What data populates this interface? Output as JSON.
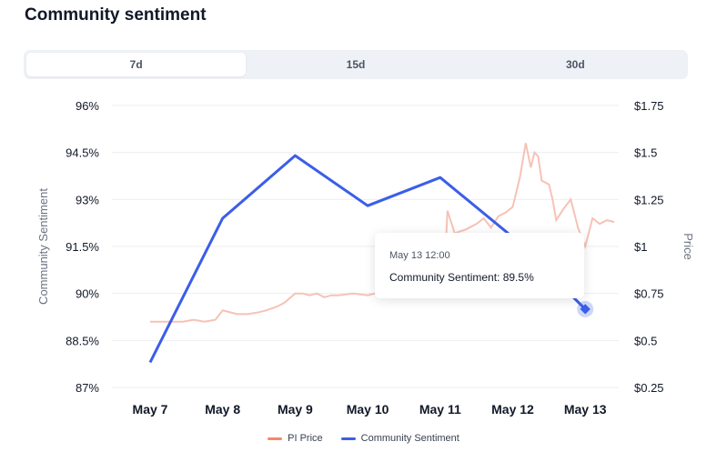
{
  "page": {
    "title": "Community sentiment"
  },
  "tabs": [
    {
      "label": "7d",
      "active": true
    },
    {
      "label": "15d",
      "active": false
    },
    {
      "label": "30d",
      "active": false
    }
  ],
  "tooltip": {
    "time": "May 13 12:00",
    "series": "Community Sentiment",
    "value": "89.5%",
    "line": "Community Sentiment: 89.5%"
  },
  "colors": {
    "sentiment": "#3b5ee8",
    "price": "#f7c2b6",
    "price_legend": "#f08a6c",
    "highlight_x": "#3b5ee8"
  },
  "chart_data": {
    "type": "line",
    "title": "Community sentiment",
    "categories": [
      "May 7",
      "May 8",
      "May 9",
      "May 10",
      "May 11",
      "May 12",
      "May 13"
    ],
    "highlighted_category": "May 13",
    "y_left": {
      "label": "Community Sentiment",
      "range": [
        87,
        96
      ],
      "ticks": [
        "87%",
        "88.5%",
        "90%",
        "91.5%",
        "93%",
        "94.5%",
        "96%"
      ],
      "tick_values": [
        87,
        88.5,
        90,
        91.5,
        93,
        94.5,
        96
      ]
    },
    "y_right": {
      "label": "Price",
      "range": [
        0.25,
        1.75
      ],
      "ticks": [
        "$0.25",
        "$0.5",
        "$0.75",
        "$1",
        "$1.25",
        "$1.5",
        "$1.75"
      ],
      "tick_values": [
        0.25,
        0.5,
        0.75,
        1,
        1.25,
        1.5,
        1.75
      ]
    },
    "grid": true,
    "legend_position": "bottom",
    "series": [
      {
        "name": "Community Sentiment",
        "axis": "left",
        "x": [
          0,
          1,
          2,
          3,
          4,
          5,
          6
        ],
        "values": [
          87.8,
          92.4,
          94.4,
          92.8,
          93.7,
          91.8,
          89.5
        ]
      },
      {
        "name": "PI Price",
        "axis": "right",
        "x": [
          0,
          0.15,
          0.3,
          0.45,
          0.6,
          0.75,
          0.9,
          1.0,
          1.2,
          1.35,
          1.5,
          1.6,
          1.75,
          1.85,
          2.0,
          2.1,
          2.2,
          2.3,
          2.4,
          2.5,
          2.6,
          2.8,
          3.0,
          3.1,
          3.2,
          3.4,
          3.6,
          3.75,
          3.9,
          4.0,
          4.05,
          4.1,
          4.2,
          4.35,
          4.5,
          4.6,
          4.7,
          4.8,
          4.9,
          5.0,
          5.1,
          5.18,
          5.25,
          5.3,
          5.35,
          5.4,
          5.5,
          5.55,
          5.6,
          5.7,
          5.8,
          5.9,
          6.0,
          6.1,
          6.2,
          6.3,
          6.4
        ],
        "values": [
          0.6,
          0.6,
          0.6,
          0.6,
          0.61,
          0.6,
          0.61,
          0.66,
          0.64,
          0.64,
          0.65,
          0.66,
          0.68,
          0.7,
          0.75,
          0.75,
          0.74,
          0.75,
          0.73,
          0.74,
          0.74,
          0.75,
          0.74,
          0.75,
          0.74,
          0.74,
          0.73,
          0.74,
          0.75,
          0.76,
          0.8,
          1.19,
          1.07,
          1.09,
          1.12,
          1.15,
          1.1,
          1.16,
          1.18,
          1.21,
          1.37,
          1.55,
          1.42,
          1.5,
          1.48,
          1.35,
          1.33,
          1.25,
          1.14,
          1.2,
          1.25,
          1.1,
          1.0,
          1.15,
          1.12,
          1.14,
          1.13
        ]
      }
    ]
  }
}
